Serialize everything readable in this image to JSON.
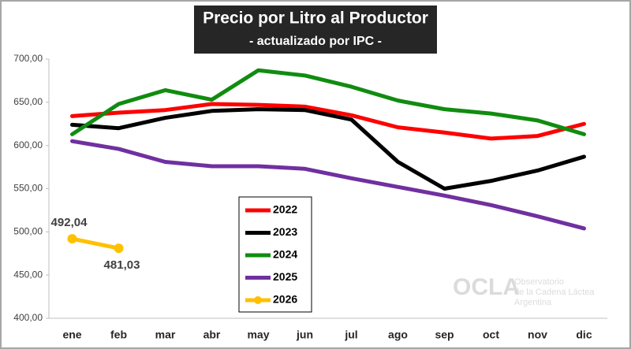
{
  "chart_data": {
    "type": "line",
    "title": "Precio por Litro al Productor",
    "subtitle": "- actualizado por IPC -",
    "categories": [
      "ene",
      "feb",
      "mar",
      "abr",
      "may",
      "jun",
      "jul",
      "ago",
      "sep",
      "oct",
      "nov",
      "dic"
    ],
    "series": [
      {
        "name": "2022",
        "color": "#ff0000",
        "values": [
          634,
          638,
          641,
          648,
          647,
          645,
          635,
          621,
          615,
          608,
          611,
          625
        ]
      },
      {
        "name": "2023",
        "color": "#000000",
        "values": [
          624,
          620,
          632,
          640,
          642,
          641,
          630,
          581,
          550,
          559,
          571,
          587
        ]
      },
      {
        "name": "2024",
        "color": "#108c10",
        "values": [
          613,
          648,
          664,
          653,
          687,
          681,
          668,
          652,
          642,
          637,
          629,
          613
        ]
      },
      {
        "name": "2025",
        "color": "#7030a0",
        "values": [
          605,
          596,
          581,
          576,
          576,
          573,
          562,
          552,
          542,
          531,
          518,
          504
        ]
      },
      {
        "name": "2026",
        "color": "#ffc000",
        "marker": true,
        "values": [
          492.04,
          481.03,
          null,
          null,
          null,
          null,
          null,
          null,
          null,
          null,
          null,
          null
        ],
        "value_labels": [
          "492,04",
          "481,03",
          null,
          null,
          null,
          null,
          null,
          null,
          null,
          null,
          null,
          null
        ]
      }
    ],
    "ylim": [
      400,
      700
    ],
    "yticks": [
      {
        "value": 400,
        "label": "400,00"
      },
      {
        "value": 450,
        "label": "450,00"
      },
      {
        "value": 500,
        "label": "500,00"
      },
      {
        "value": 550,
        "label": "550,00"
      },
      {
        "value": 600,
        "label": "600,00"
      },
      {
        "value": 650,
        "label": "650,00"
      },
      {
        "value": 700,
        "label": "700,00"
      }
    ],
    "grid": false,
    "legend": "center",
    "watermark": {
      "logo": "OCLA",
      "lines": [
        "Observatorio",
        "de la Cadena Láctea",
        "Argentina"
      ]
    }
  }
}
